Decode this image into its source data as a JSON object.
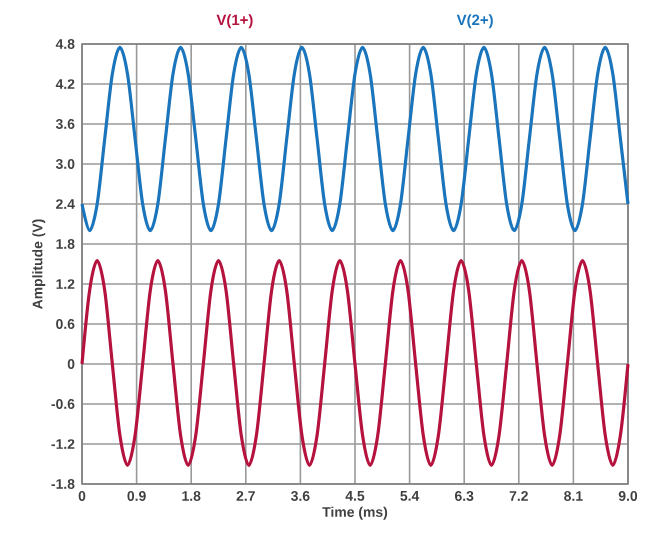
{
  "chart_data": {
    "type": "line",
    "xlabel": "Time (ms)",
    "ylabel": "Amplitude (V)",
    "x": [
      0,
      0.125,
      0.25,
      0.375,
      0.5,
      0.625,
      0.75,
      0.875,
      1,
      1.125,
      1.25,
      1.375,
      1.5,
      1.625,
      1.75,
      1.875,
      2,
      2.125,
      2.25,
      2.375,
      2.5,
      2.625,
      2.75,
      2.875,
      3,
      3.125,
      3.25,
      3.375,
      3.5,
      3.625,
      3.75,
      3.875,
      4,
      4.125,
      4.25,
      4.375,
      4.5,
      4.625,
      4.75,
      4.875,
      5,
      5.125,
      5.25,
      5.375,
      5.5,
      5.625,
      5.75,
      5.875,
      6,
      6.125,
      6.25,
      6.375,
      6.5,
      6.625,
      6.75,
      6.875,
      7,
      7.125,
      7.25,
      7.375,
      7.5,
      7.625,
      7.75,
      7.875,
      8,
      8.125,
      8.25,
      8.375,
      8.5,
      8.625,
      8.75,
      8.875,
      9
    ],
    "series": [
      {
        "name": "V(1+)",
        "color": "#b5123e",
        "values": [
          0,
          1.1,
          1.55,
          1.1,
          0,
          -1.07,
          -1.52,
          -1.07,
          0,
          1.1,
          1.55,
          1.1,
          0,
          -1.07,
          -1.52,
          -1.07,
          0,
          1.1,
          1.55,
          1.1,
          0,
          -1.07,
          -1.52,
          -1.07,
          0,
          1.1,
          1.55,
          1.1,
          0,
          -1.07,
          -1.52,
          -1.07,
          0,
          1.1,
          1.55,
          1.1,
          0,
          -1.07,
          -1.52,
          -1.07,
          0,
          1.1,
          1.55,
          1.1,
          0,
          -1.07,
          -1.52,
          -1.07,
          0,
          1.1,
          1.55,
          1.1,
          0,
          -1.07,
          -1.52,
          -1.07,
          0,
          1.1,
          1.55,
          1.1,
          0,
          -1.07,
          -1.52,
          -1.07,
          0,
          1.1,
          1.55,
          1.1,
          0,
          -1.07,
          -1.52,
          -1.07,
          0
        ]
      },
      {
        "name": "V(2+)",
        "color": "#1a75bc",
        "values": [
          2.4,
          2.0,
          2.4,
          3.38,
          4.35,
          4.75,
          4.35,
          3.38,
          2.4,
          2.0,
          2.4,
          3.38,
          4.35,
          4.75,
          4.35,
          3.38,
          2.4,
          2.0,
          2.4,
          3.38,
          4.35,
          4.75,
          4.35,
          3.38,
          2.4,
          2.0,
          2.4,
          3.38,
          4.35,
          4.75,
          4.35,
          3.38,
          2.4,
          2.0,
          2.4,
          3.38,
          4.35,
          4.75,
          4.35,
          3.38,
          2.4,
          2.0,
          2.4,
          3.38,
          4.35,
          4.75,
          4.35,
          3.38,
          2.4,
          2.0,
          2.4,
          3.38,
          4.35,
          4.75,
          4.35,
          3.38,
          2.4,
          2.0,
          2.4,
          3.38,
          4.35,
          4.75,
          4.35,
          3.38,
          2.4,
          2.0,
          2.4,
          3.38,
          4.35,
          4.75,
          4.35,
          3.38,
          2.4
        ]
      }
    ],
    "xlim": [
      0,
      9
    ],
    "ylim": [
      -1.8,
      4.8
    ],
    "xticks": [
      0,
      0.9,
      1.8,
      2.7,
      3.6,
      4.5,
      5.4,
      6.3,
      7.2,
      8.1,
      {
        "value": 9,
        "label": "9.0"
      }
    ],
    "yticks": [
      -1.8,
      -1.2,
      -0.6,
      0,
      0.6,
      1.2,
      1.8,
      2.4,
      {
        "value": 3,
        "label": "3.0"
      },
      3.6,
      4.2,
      4.8
    ],
    "grid": true,
    "marker": "none",
    "line_style": "solid"
  }
}
